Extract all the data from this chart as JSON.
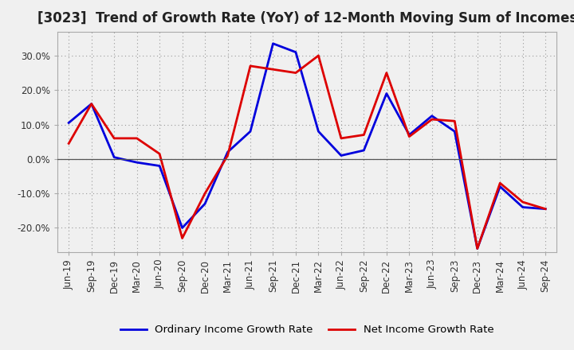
{
  "title": "[3023]  Trend of Growth Rate (YoY) of 12-Month Moving Sum of Incomes",
  "labels": [
    "Jun-19",
    "Sep-19",
    "Dec-19",
    "Mar-20",
    "Jun-20",
    "Sep-20",
    "Dec-20",
    "Mar-21",
    "Jun-21",
    "Sep-21",
    "Dec-21",
    "Mar-22",
    "Jun-22",
    "Sep-22",
    "Dec-22",
    "Mar-23",
    "Jun-23",
    "Sep-23",
    "Dec-23",
    "Mar-24",
    "Jun-24",
    "Sep-24"
  ],
  "ordinary_income": [
    10.5,
    16.0,
    0.5,
    -1.0,
    -2.0,
    -20.0,
    -13.0,
    2.0,
    8.0,
    33.5,
    31.0,
    8.0,
    1.0,
    2.5,
    19.0,
    7.0,
    12.5,
    8.0,
    -26.0,
    -8.0,
    -14.0,
    -14.5
  ],
  "net_income": [
    4.5,
    16.0,
    6.0,
    6.0,
    1.5,
    -23.0,
    -10.0,
    1.0,
    27.0,
    26.0,
    25.0,
    30.0,
    6.0,
    7.0,
    25.0,
    6.5,
    11.5,
    11.0,
    -26.0,
    -7.0,
    -12.5,
    -14.5
  ],
  "ordinary_color": "#0000dd",
  "net_color": "#dd0000",
  "bg_color": "#f0f0f0",
  "plot_bg_color": "#f0f0f0",
  "grid_color": "#999999",
  "ylim": [
    -27,
    37
  ],
  "yticks": [
    -20.0,
    -10.0,
    0.0,
    10.0,
    20.0,
    30.0
  ],
  "legend_ordinary": "Ordinary Income Growth Rate",
  "legend_net": "Net Income Growth Rate",
  "title_fontsize": 12,
  "tick_fontsize": 8.5,
  "legend_fontsize": 9.5
}
